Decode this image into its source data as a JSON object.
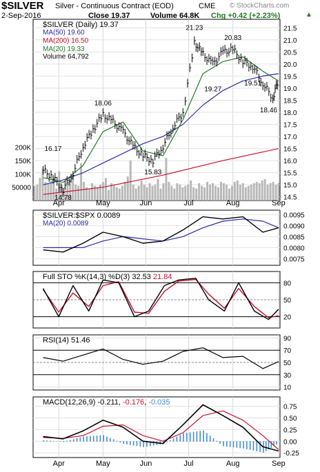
{
  "header": {
    "symbol": "$SILVER",
    "name": "Silver - Continuous Contract (EOD)",
    "exchange": "CME",
    "date": "2-Sep-2016",
    "close_label": "Close 19.37",
    "volume_label": "Volume 64.8K",
    "change_label": "Chg +0.42 (+2.23%)",
    "change_arrow": "▲",
    "watermark": "© StockCharts.com"
  },
  "colors": {
    "price": "#000000",
    "ma50": "#2a2aa8",
    "ma200": "#c8102e",
    "ma20": "#1f7a1f",
    "volume": "#b8b8b8",
    "accent_up": "#1f7a1f",
    "accent_down": "#c8102e",
    "histogram": "#3f8fcf"
  },
  "chart_data": [
    {
      "type": "line",
      "title": "$SILVER (Daily) 19.37",
      "series": [
        {
          "name": "MA(50) 19.60",
          "x": [
            "Mar 21",
            "Apr 4",
            "Apr 18",
            "May 2",
            "May 16",
            "May 30",
            "Jun 13",
            "Jun 27",
            "Jul 11",
            "Jul 25",
            "Aug 8",
            "Aug 22",
            "Sep 2"
          ],
          "values": [
            15.0,
            15.2,
            15.5,
            15.9,
            16.3,
            16.7,
            17.0,
            17.5,
            18.3,
            18.9,
            19.3,
            19.5,
            19.6
          ]
        },
        {
          "name": "MA(200) 16.50",
          "x": [
            "Mar 21",
            "May 2",
            "Jun 13",
            "Jul 25",
            "Sep 2"
          ],
          "values": [
            14.6,
            14.9,
            15.4,
            16.0,
            16.5
          ]
        },
        {
          "name": "MA(20) 19.33",
          "x": [
            "Mar 21",
            "Apr 4",
            "Apr 18",
            "May 2",
            "May 16",
            "May 30",
            "Jun 13",
            "Jun 27",
            "Jul 11",
            "Jul 25",
            "Aug 8",
            "Aug 22",
            "Sep 2"
          ],
          "values": [
            15.3,
            15.1,
            15.8,
            17.2,
            17.6,
            16.4,
            16.2,
            17.7,
            19.6,
            20.1,
            20.3,
            19.7,
            19.3
          ]
        },
        {
          "name": "$SILVER",
          "x": [
            "Mar 21",
            "Mar 28",
            "Apr 4",
            "Apr 11",
            "Apr 18",
            "Apr 25",
            "May 2",
            "May 9",
            "May 16",
            "May 23",
            "May 30",
            "Jun 6",
            "Jun 13",
            "Jun 20",
            "Jun 27",
            "Jul 5",
            "Jul 11",
            "Jul 18",
            "Jul 25",
            "Aug 1",
            "Aug 8",
            "Aug 15",
            "Aug 22",
            "Aug 29",
            "Sep 2"
          ],
          "values": [
            15.6,
            15.3,
            14.8,
            15.5,
            16.6,
            17.3,
            17.9,
            17.6,
            17.2,
            16.6,
            16.2,
            16.0,
            16.6,
            17.4,
            18.0,
            20.9,
            20.4,
            20.0,
            20.5,
            20.6,
            20.1,
            19.9,
            19.2,
            18.6,
            19.37
          ]
        }
      ],
      "annotations": [
        "16.17",
        "14.78",
        "18.06",
        "15.83",
        "21.23",
        "19.27",
        "20.83",
        "19.51",
        "18.46"
      ],
      "y_ticks": [
        "21.5",
        "21.0",
        "20.5",
        "20.0",
        "19.5",
        "19.0",
        "18.5",
        "18.0",
        "17.5",
        "17.0",
        "16.5",
        "16.0",
        "15.5",
        "15.0",
        "14.5"
      ],
      "ylim": [
        14.35,
        21.85
      ],
      "volume": {
        "label": "Volume 64,792",
        "ticks": [
          "200K",
          "150K",
          "100K",
          "50000"
        ],
        "values": [
          55,
          60,
          85,
          120,
          70,
          65,
          75,
          90,
          45,
          110,
          60,
          50,
          70,
          80,
          95,
          60,
          55,
          140,
          70,
          50,
          45,
          65,
          55,
          50,
          60,
          70,
          85,
          40,
          65,
          60,
          50,
          45,
          55,
          70,
          90,
          150,
          60,
          45,
          55,
          75,
          60,
          50,
          65,
          55,
          60,
          80,
          45,
          65,
          160,
          70,
          55,
          45,
          65,
          60,
          50,
          55,
          60,
          75,
          50,
          45,
          65,
          55,
          50,
          70,
          60,
          65,
          55,
          50,
          70,
          65,
          60,
          45,
          55,
          70,
          75,
          60,
          65,
          50,
          55,
          60,
          65,
          70,
          65,
          75,
          80,
          60,
          65,
          70,
          60,
          65
        ]
      }
    },
    {
      "type": "line",
      "title": "$SILVER:$SPX 0.0089",
      "series": [
        {
          "name": "$SILVER:$SPX 0.0089",
          "x": [
            "Mar 21",
            "Apr 4",
            "Apr 18",
            "May 2",
            "May 16",
            "May 30",
            "Jun 13",
            "Jun 27",
            "Jul 11",
            "Jul 25",
            "Aug 8",
            "Aug 22",
            "Sep 2"
          ],
          "values": [
            0.0079,
            0.0078,
            0.0082,
            0.0087,
            0.0085,
            0.0082,
            0.0083,
            0.0088,
            0.0094,
            0.0093,
            0.0094,
            0.0087,
            0.0089
          ]
        },
        {
          "name": "MA(20) 0.0089",
          "x": [
            "Mar 21",
            "Apr 4",
            "Apr 18",
            "May 2",
            "May 16",
            "May 30",
            "Jun 13",
            "Jun 27",
            "Jul 11",
            "Jul 25",
            "Aug 8",
            "Aug 22",
            "Sep 2"
          ],
          "values": [
            0.008,
            0.008,
            0.008,
            0.0083,
            0.0085,
            0.0084,
            0.0083,
            0.0085,
            0.0089,
            0.0092,
            0.0093,
            0.0092,
            0.0089
          ]
        }
      ],
      "y_ticks": [
        "0.0095",
        "0.0090",
        "0.0085",
        "0.0080",
        "0.0075"
      ],
      "ylim": [
        0.0072,
        0.0097
      ]
    },
    {
      "type": "line",
      "title_label": "Full STO %K(14,3) %D(3)",
      "k_value": "32.53",
      "d_value": "21.84",
      "series": [
        {
          "name": "%K",
          "x": [
            "Mar 21",
            "Apr 1",
            "Apr 11",
            "Apr 22",
            "May 2",
            "May 13",
            "May 24",
            "Jun 3",
            "Jun 14",
            "Jun 24",
            "Jul 6",
            "Jul 15",
            "Jul 26",
            "Aug 5",
            "Aug 16",
            "Aug 26",
            "Sep 2"
          ],
          "values": [
            70,
            20,
            75,
            30,
            85,
            80,
            20,
            30,
            75,
            85,
            88,
            50,
            30,
            80,
            30,
            15,
            33
          ]
        },
        {
          "name": "%D",
          "x": [
            "Mar 21",
            "Apr 1",
            "Apr 11",
            "Apr 22",
            "May 2",
            "May 13",
            "May 24",
            "Jun 3",
            "Jun 14",
            "Jun 24",
            "Jul 6",
            "Jul 15",
            "Jul 26",
            "Aug 5",
            "Aug 16",
            "Aug 26",
            "Sep 2"
          ],
          "values": [
            68,
            28,
            62,
            38,
            75,
            82,
            28,
            26,
            65,
            83,
            86,
            60,
            35,
            70,
            38,
            18,
            22
          ]
        }
      ],
      "y_ticks": [
        "80",
        "50",
        "20"
      ],
      "ylim": [
        0,
        100
      ]
    },
    {
      "type": "line",
      "title": "RSI(14) 51.46",
      "series": [
        {
          "name": "RSI(14)",
          "x": [
            "Mar 21",
            "Apr 4",
            "Apr 18",
            "May 2",
            "May 16",
            "May 30",
            "Jun 13",
            "Jun 27",
            "Jul 11",
            "Jul 25",
            "Aug 8",
            "Aug 22",
            "Sep 2"
          ],
          "values": [
            58,
            52,
            62,
            72,
            55,
            47,
            52,
            68,
            74,
            58,
            60,
            40,
            51.46
          ]
        }
      ],
      "y_ticks": [
        "90",
        "70",
        "50",
        "30",
        "10"
      ],
      "ylim": [
        5,
        95
      ]
    },
    {
      "type": "line",
      "title_label": "MACD(12,26,9)",
      "macd_value": "-0.211",
      "signal_value": "-0.176",
      "hist_value": "-0.035",
      "series": [
        {
          "name": "MACD",
          "x": [
            "Mar 21",
            "Apr 4",
            "Apr 18",
            "May 2",
            "May 16",
            "May 30",
            "Jun 13",
            "Jun 27",
            "Jul 11",
            "Jul 25",
            "Aug 8",
            "Aug 22",
            "Sep 2"
          ],
          "values": [
            0.1,
            0.05,
            0.22,
            0.45,
            0.3,
            0.0,
            -0.05,
            0.35,
            0.78,
            0.55,
            0.3,
            -0.12,
            -0.21
          ]
        },
        {
          "name": "Signal",
          "x": [
            "Mar 21",
            "Apr 4",
            "Apr 18",
            "May 2",
            "May 16",
            "May 30",
            "Jun 13",
            "Jun 27",
            "Jul 11",
            "Jul 25",
            "Aug 8",
            "Aug 22",
            "Sep 2"
          ],
          "values": [
            0.08,
            0.06,
            0.12,
            0.32,
            0.35,
            0.12,
            0.0,
            0.18,
            0.55,
            0.65,
            0.45,
            0.12,
            -0.18
          ]
        }
      ],
      "y_ticks": [
        "0.75",
        "0.50",
        "0.25",
        "0.00",
        "-0.25"
      ],
      "ylim": [
        -0.35,
        0.95
      ]
    }
  ],
  "x_axis": {
    "labels": [
      "Apr",
      "May",
      "Jun",
      "Jul",
      "Aug",
      "Sep"
    ],
    "dates": [
      "Apr 1",
      "May 2",
      "Jun 1",
      "Jul 1",
      "Aug 1",
      "Sep 2"
    ]
  }
}
